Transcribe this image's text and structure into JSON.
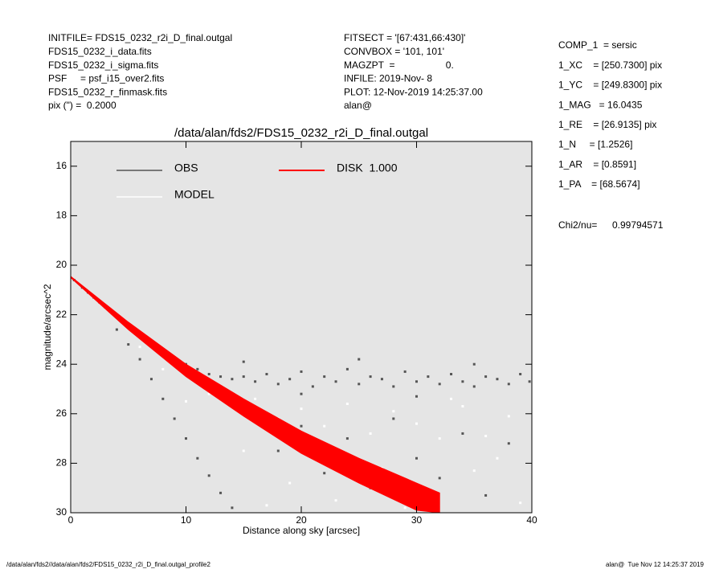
{
  "header": {
    "left": [
      "INITFILE= FDS15_0232_r2i_D_final.outgal",
      "FDS15_0232_i_data.fits",
      "FDS15_0232_i_sigma.fits",
      "PSF     = psf_i15_over2.fits",
      "FDS15_0232_r_finmask.fits",
      "pix (\") =  0.2000"
    ],
    "middle": [
      "FITSECT = '[67:431,66:430]'",
      "CONVBOX = '101, 101'",
      "MAGZPT  =                   0.",
      "INFILE: 2019-Nov- 8",
      "PLOT: 12-Nov-2019 14:25:37.00",
      "alan@"
    ],
    "right": [
      "COMP_1  = sersic",
      "1_XC    = [250.7300] pix",
      "1_YC    = [249.8300] pix",
      "1_MAG   = 16.0435",
      "1_RE    = [26.9135] pix",
      "1_N     = [1.2526]",
      "1_AR    = [0.8591]",
      "1_PA    = [68.5674]"
    ],
    "chi2_label": "Chi2/nu=",
    "chi2_value": "0.99794571"
  },
  "footer": {
    "left": "/data/alan/fds2//data/alan/fds2/FDS15_0232_r2i_D_final.outgal_profile2",
    "right": "alan@  Tue Nov 12 14:25:37 2019"
  },
  "chart_data": {
    "type": "scatter",
    "title": "/data/alan/fds2/FDS15_0232_r2i_D_final.outgal",
    "x_label": "Distance along sky [arcsec]",
    "y_label": "magnitude/arcsec^2",
    "xlim": [
      0,
      40
    ],
    "ylim": [
      30,
      15
    ],
    "xticks": [
      0,
      10,
      20,
      30,
      40
    ],
    "yticks": [
      16,
      18,
      20,
      22,
      24,
      26,
      28,
      30
    ],
    "background": "#e5e5e5",
    "series": [
      {
        "name": "OBS",
        "color": "#555555",
        "x": [
          0.3,
          1,
          1.5,
          2,
          2.5,
          3,
          3.5,
          4,
          4.5,
          5,
          5.5,
          6,
          6.5,
          7,
          7.5,
          8,
          9,
          10,
          11,
          12,
          13,
          14,
          15,
          16,
          17,
          18,
          19,
          20,
          21,
          22,
          23,
          24,
          25,
          26,
          27,
          28,
          29,
          30,
          31,
          32,
          33,
          34,
          35,
          36,
          37,
          38,
          39,
          39.8,
          4,
          5,
          6,
          7,
          8,
          9,
          10,
          11,
          12,
          13,
          14,
          16,
          18,
          20,
          22,
          24,
          26,
          28,
          30,
          32,
          34,
          36,
          38,
          15,
          25,
          35,
          20,
          30
        ],
        "values": [
          20.6,
          20.9,
          21.1,
          21.3,
          21.5,
          21.7,
          21.9,
          22.1,
          22.3,
          22.5,
          22.6,
          22.8,
          23.0,
          23.2,
          23.3,
          23.5,
          23.8,
          24.0,
          24.2,
          24.4,
          24.5,
          24.6,
          24.5,
          24.7,
          24.4,
          24.8,
          24.6,
          24.3,
          24.9,
          24.5,
          24.7,
          24.2,
          24.8,
          24.5,
          24.6,
          24.9,
          24.3,
          24.7,
          24.5,
          24.8,
          24.4,
          24.7,
          24.9,
          24.5,
          24.6,
          24.8,
          24.4,
          24.7,
          22.6,
          23.2,
          23.8,
          24.6,
          25.4,
          26.2,
          27.0,
          27.8,
          28.5,
          29.2,
          29.8,
          26.0,
          27.5,
          26.5,
          28.4,
          27.0,
          29.0,
          26.2,
          27.8,
          28.6,
          26.8,
          29.3,
          27.2,
          23.9,
          23.8,
          24.0,
          25.2,
          25.3
        ]
      },
      {
        "name": "MODEL",
        "color": "#ffffff",
        "x": [
          12,
          14,
          16,
          18,
          20,
          22,
          24,
          26,
          28,
          30,
          32,
          34,
          36,
          38,
          15,
          19,
          23,
          27,
          31,
          35,
          39,
          10,
          8,
          6,
          17,
          29,
          33,
          37
        ],
        "values": [
          25.2,
          25.6,
          25.4,
          26.2,
          25.8,
          26.5,
          25.6,
          26.8,
          25.9,
          26.4,
          27.0,
          25.7,
          26.9,
          26.1,
          27.5,
          28.8,
          29.5,
          28.2,
          29.1,
          28.3,
          29.6,
          25.5,
          24.2,
          23.3,
          29.7,
          29.8,
          25.4,
          27.8
        ]
      },
      {
        "name": "DISK  1.000",
        "color": "#ff0000",
        "x": [
          0,
          5,
          10,
          15,
          20,
          25,
          30,
          32
        ],
        "values": [
          20.45,
          22.3,
          24.0,
          25.4,
          26.7,
          27.8,
          28.8,
          29.2
        ],
        "values_lower": [
          20.5,
          22.6,
          24.5,
          26.1,
          27.6,
          28.8,
          29.9,
          30
        ]
      }
    ]
  }
}
